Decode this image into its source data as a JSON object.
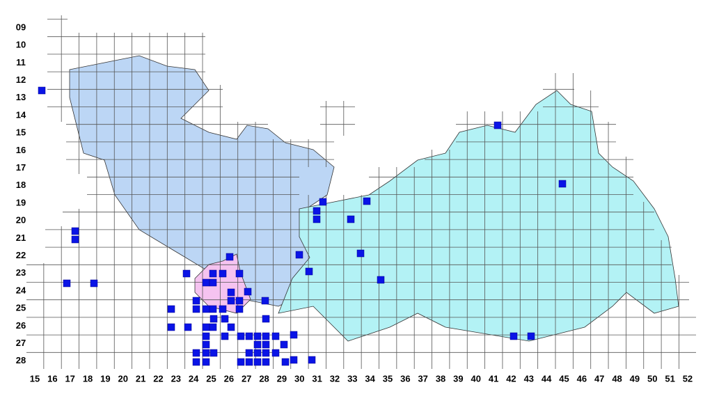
{
  "rows": [
    "09",
    "10",
    "11",
    "12",
    "13",
    "14",
    "15",
    "16",
    "17",
    "18",
    "19",
    "20",
    "21",
    "22",
    "23",
    "24",
    "25",
    "26",
    "27",
    "28"
  ],
  "columns": [
    "15",
    "16",
    "17",
    "18",
    "19",
    "20",
    "21",
    "22",
    "23",
    "24",
    "25",
    "26",
    "27",
    "28",
    "29",
    "30",
    "31",
    "32",
    "33",
    "34",
    "35",
    "36",
    "37",
    "38",
    "39",
    "40",
    "41",
    "42",
    "43",
    "44",
    "45",
    "46",
    "47",
    "48",
    "49",
    "50",
    "51",
    "52"
  ]
}
